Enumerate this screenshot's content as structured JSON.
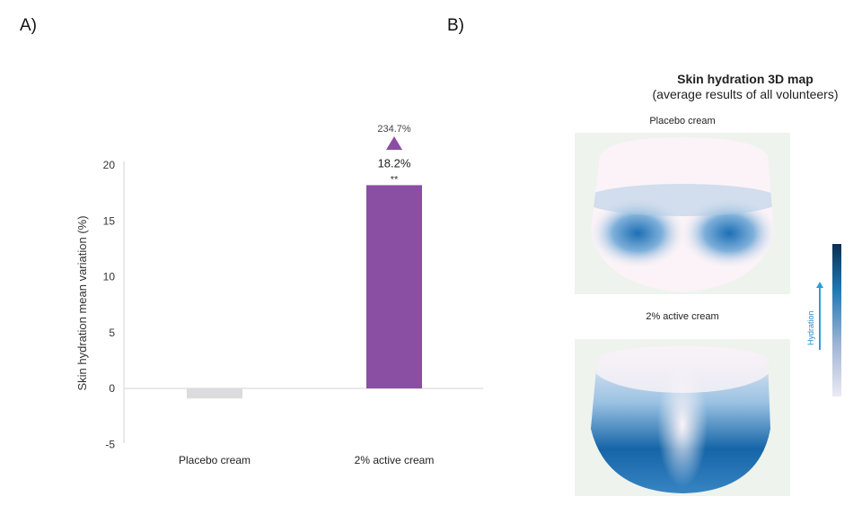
{
  "panels": {
    "a_label": "A)",
    "b_label": "B)"
  },
  "chart_data": {
    "type": "bar",
    "categories": [
      "Placebo cream",
      "2% active cream"
    ],
    "values": [
      -0.9,
      18.2
    ],
    "colors": [
      "#dcdcde",
      "#8a4fa3"
    ],
    "data_labels": [
      "",
      "18.2%"
    ],
    "significance": [
      "",
      "**"
    ],
    "annotation": {
      "text": "234.7%",
      "marker": "up-triangle",
      "color": "#8a4fa3"
    },
    "title": "",
    "xlabel": "",
    "ylabel": "Skin hydration mean variation (%)",
    "ylim": [
      -5,
      20
    ],
    "yticks": [
      -5,
      0,
      5,
      10,
      15,
      20
    ],
    "grid": false
  },
  "map": {
    "title": "Skin hydration 3D map",
    "subtitle": "(average results of all volunteers)",
    "placebo_caption": "Placebo cream",
    "active_caption": "2% active cream",
    "colorbar_label": "Hydration",
    "colorbar_colors": [
      "#eceaf3",
      "#1f78b4",
      "#0b2f4f"
    ]
  }
}
